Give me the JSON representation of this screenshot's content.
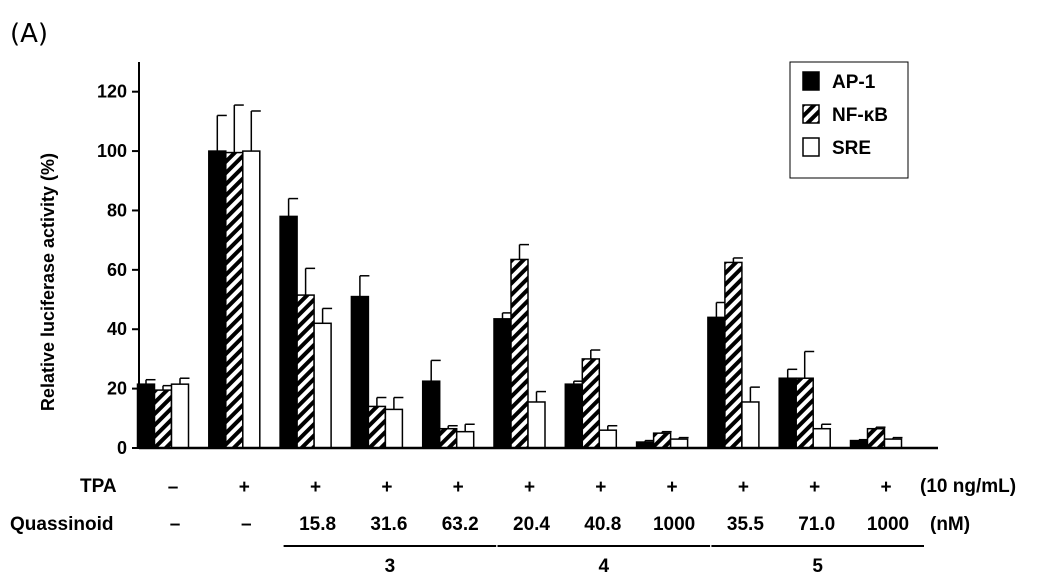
{
  "panel_label": "(A)",
  "chart_data": {
    "type": "bar",
    "ylabel": "Relative luciferase activity (%)",
    "ylim": [
      0,
      130
    ],
    "yticks": [
      0,
      20,
      40,
      60,
      80,
      100,
      120
    ],
    "legend_position": "top-right",
    "series": [
      {
        "name": "AP-1",
        "pattern": "solid",
        "values": [
          21.5,
          100,
          78,
          51,
          22.5,
          43.5,
          21.5,
          2,
          44,
          23.5,
          2.5
        ],
        "errors": [
          1.5,
          12,
          6,
          7,
          7,
          2,
          1,
          0.5,
          5,
          3,
          0.3
        ]
      },
      {
        "name": "NF-κB",
        "pattern": "hatched",
        "values": [
          19.5,
          99.5,
          51.5,
          14,
          6.5,
          63.5,
          30,
          5,
          62.5,
          23.5,
          6.5
        ],
        "errors": [
          1.5,
          16,
          9,
          3,
          1,
          5,
          3,
          0.5,
          1.5,
          9,
          0.5
        ]
      },
      {
        "name": "SRE",
        "pattern": "open",
        "values": [
          21.5,
          100,
          42,
          13,
          5.5,
          15.5,
          6,
          3,
          15.5,
          6.5,
          3
        ],
        "errors": [
          2,
          13.5,
          5,
          4,
          2.5,
          3.5,
          1.5,
          0.5,
          5,
          1.5,
          0.5
        ]
      }
    ],
    "groups": [
      {
        "tpa": "–",
        "quassinoid": "–"
      },
      {
        "tpa": "+",
        "quassinoid": "–"
      },
      {
        "tpa": "+",
        "quassinoid": "15.8"
      },
      {
        "tpa": "+",
        "quassinoid": "31.6"
      },
      {
        "tpa": "+",
        "quassinoid": "63.2"
      },
      {
        "tpa": "+",
        "quassinoid": "20.4"
      },
      {
        "tpa": "+",
        "quassinoid": "40.8"
      },
      {
        "tpa": "+",
        "quassinoid": "1000"
      },
      {
        "tpa": "+",
        "quassinoid": "35.5"
      },
      {
        "tpa": "+",
        "quassinoid": "71.0"
      },
      {
        "tpa": "+",
        "quassinoid": "1000"
      }
    ],
    "compounds": [
      {
        "label": "3",
        "group_start": 2,
        "group_end": 4
      },
      {
        "label": "4",
        "group_start": 5,
        "group_end": 7
      },
      {
        "label": "5",
        "group_start": 8,
        "group_end": 10
      }
    ],
    "row_labels": {
      "tpa": "TPA",
      "tpa_unit": "(10 ng/mL)",
      "quassinoid": "Quassinoid",
      "quassinoid_unit": "(nM)"
    }
  }
}
